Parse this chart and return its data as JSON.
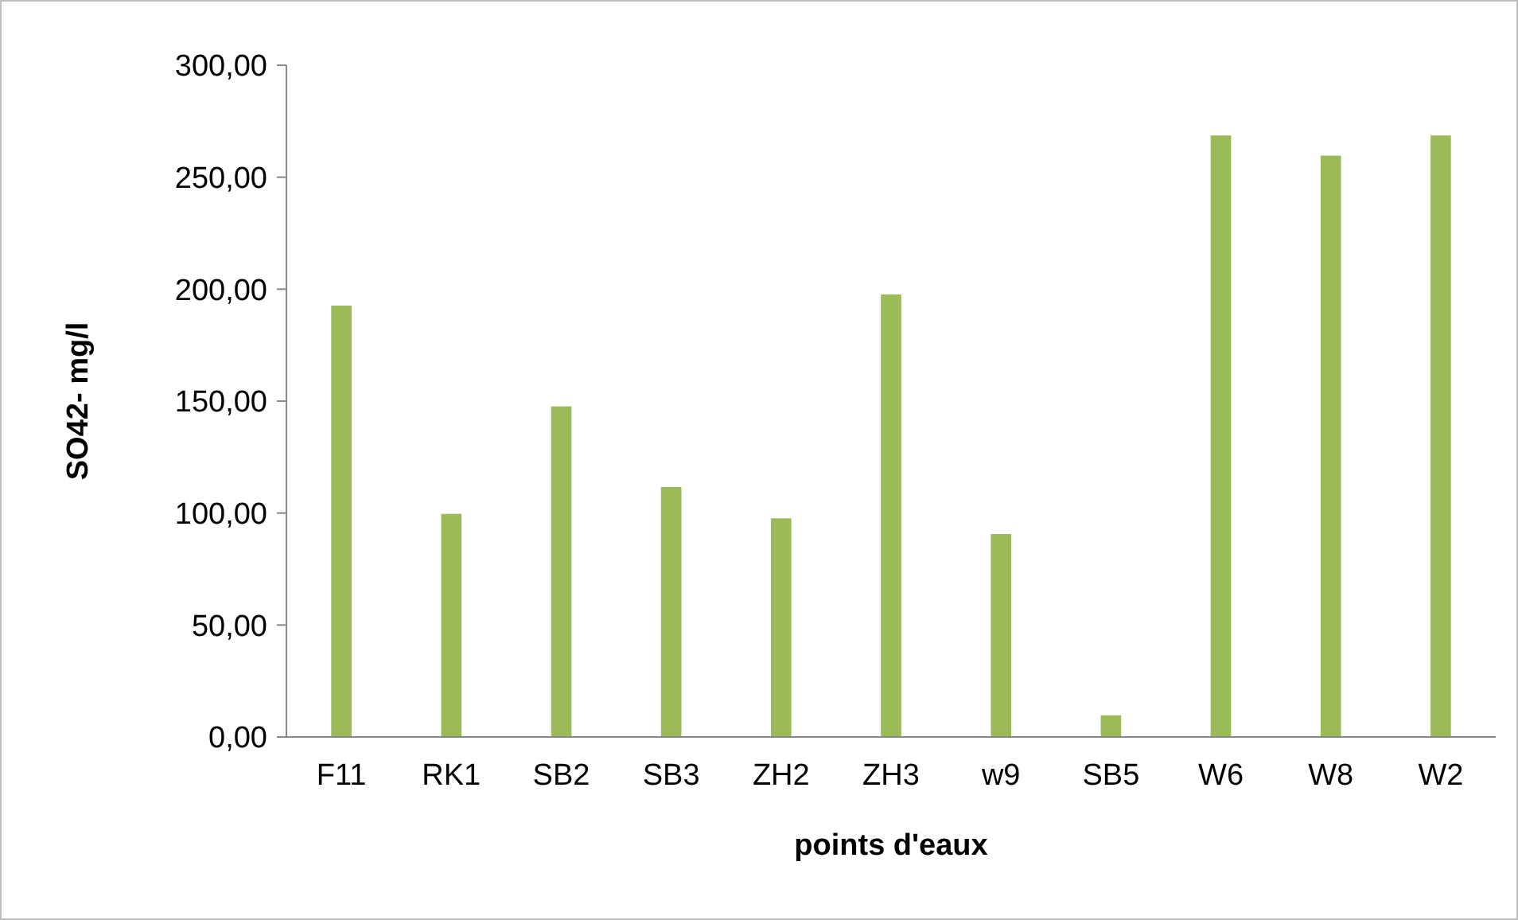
{
  "chart_data": {
    "type": "bar",
    "xlabel": "points d'eaux",
    "ylabel": "SO42- mg/l",
    "categories": [
      "F11",
      "RK1",
      "SB2",
      "SB3",
      "ZH2",
      "ZH3",
      "w9",
      "SB5",
      "W6",
      "W8",
      "W2"
    ],
    "values": [
      193,
      100,
      148,
      112,
      98,
      198,
      91,
      10,
      269,
      260,
      269
    ],
    "color": "#9bbb59",
    "ylim": [
      0,
      300
    ],
    "yticks": [
      {
        "value": 0,
        "label": "0,00"
      },
      {
        "value": 50,
        "label": "50,00"
      },
      {
        "value": 100,
        "label": "100,00"
      },
      {
        "value": 150,
        "label": "150,00"
      },
      {
        "value": 200,
        "label": "200,00"
      },
      {
        "value": 250,
        "label": "250,00"
      },
      {
        "value": 300,
        "label": "300,00"
      }
    ],
    "grid": false
  }
}
